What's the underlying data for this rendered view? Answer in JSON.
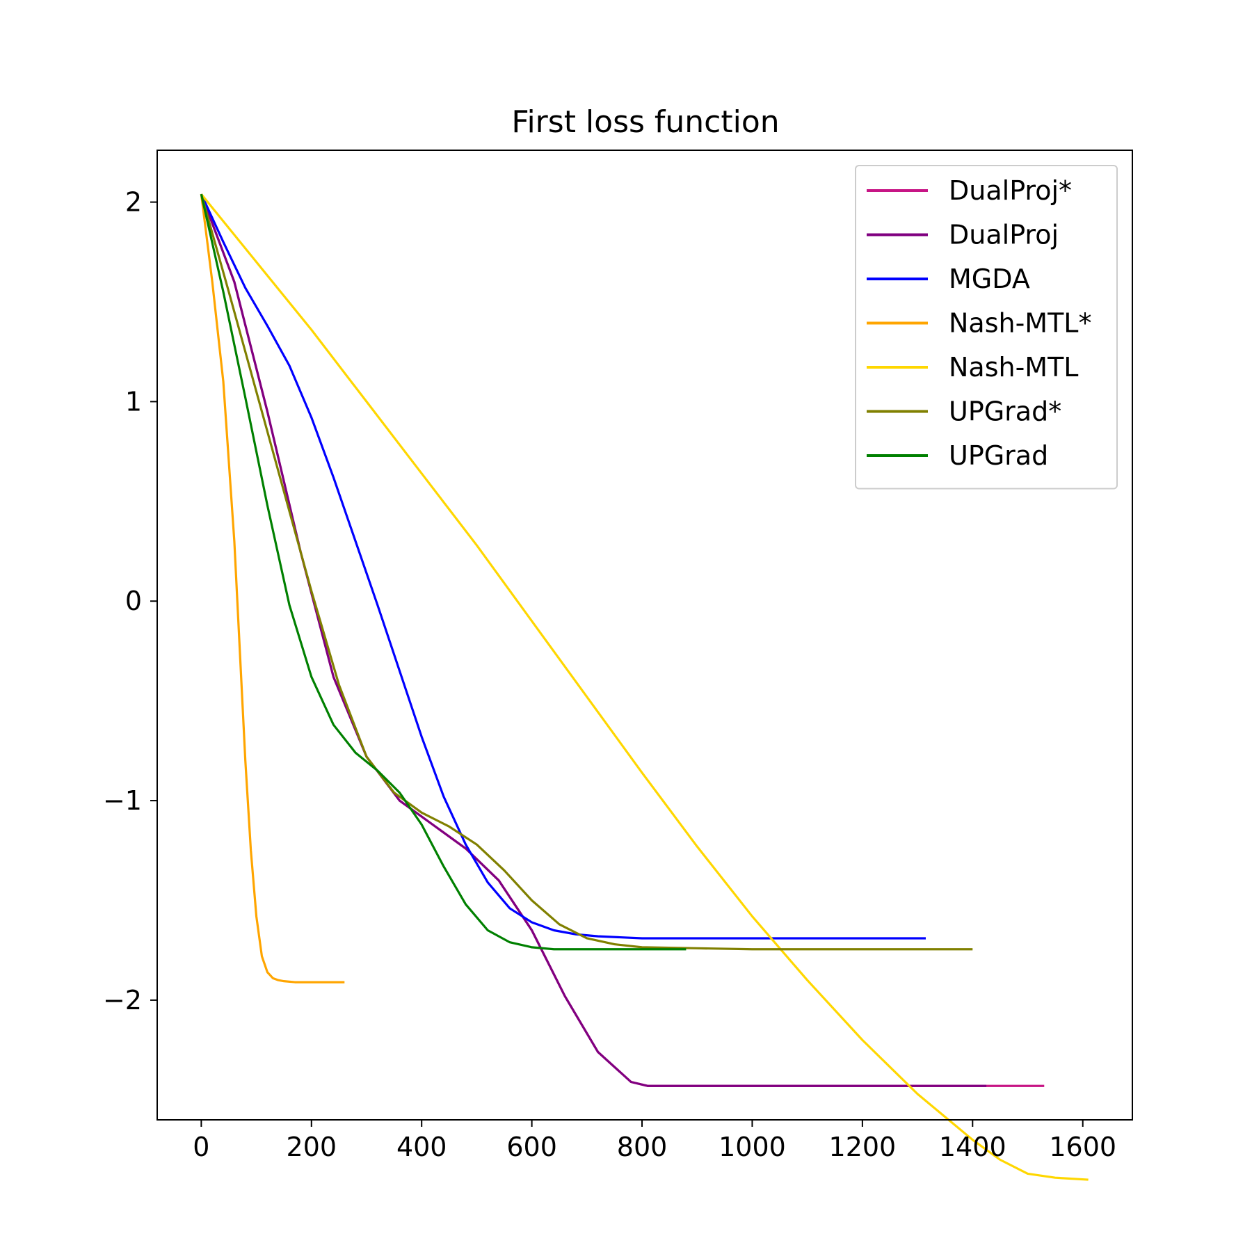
{
  "chart_data": {
    "type": "line",
    "title": "First loss function",
    "xlabel": "",
    "ylabel": "",
    "xlim": [
      -80,
      1690
    ],
    "ylim": [
      -2.6,
      2.26
    ],
    "xticks": [
      0,
      200,
      400,
      600,
      800,
      1000,
      1200,
      1400,
      1600
    ],
    "xtick_labels": [
      "0",
      "200",
      "400",
      "600",
      "800",
      "1000",
      "1200",
      "1400",
      "1600"
    ],
    "yticks": [
      2,
      1,
      0,
      -1,
      -2
    ],
    "ytick_labels": [
      "2",
      "1",
      "0",
      "−1",
      "−2"
    ],
    "grid": false,
    "legend_position": "top-right",
    "series": [
      {
        "name": "DualProj*",
        "color": "#c71585",
        "x": [
          0,
          60,
          120,
          180,
          240,
          300,
          360,
          420,
          480,
          540,
          600,
          660,
          720,
          780,
          810,
          900,
          1000,
          1100,
          1200,
          1300,
          1400,
          1530
        ],
        "y": [
          2.04,
          1.6,
          0.95,
          0.25,
          -0.38,
          -0.78,
          -1.0,
          -1.12,
          -1.24,
          -1.4,
          -1.65,
          -1.98,
          -2.26,
          -2.41,
          -2.43,
          -2.43,
          -2.43,
          -2.43,
          -2.43,
          -2.43,
          -2.43,
          -2.43
        ]
      },
      {
        "name": "DualProj",
        "color": "#800080",
        "x": [
          0,
          60,
          120,
          180,
          240,
          300,
          360,
          420,
          480,
          540,
          600,
          660,
          720,
          780,
          810,
          900,
          1000,
          1100,
          1200,
          1300,
          1425
        ],
        "y": [
          2.04,
          1.6,
          0.95,
          0.25,
          -0.38,
          -0.78,
          -1.0,
          -1.12,
          -1.24,
          -1.4,
          -1.65,
          -1.98,
          -2.26,
          -2.41,
          -2.43,
          -2.43,
          -2.43,
          -2.43,
          -2.43,
          -2.43,
          -2.43
        ]
      },
      {
        "name": "MGDA",
        "color": "#0000ff",
        "x": [
          0,
          40,
          80,
          120,
          160,
          200,
          240,
          280,
          320,
          360,
          400,
          440,
          480,
          520,
          560,
          600,
          640,
          680,
          720,
          760,
          800,
          900,
          1000,
          1100,
          1200,
          1315
        ],
        "y": [
          2.04,
          1.8,
          1.57,
          1.38,
          1.18,
          0.92,
          0.62,
          0.3,
          -0.02,
          -0.35,
          -0.68,
          -0.98,
          -1.22,
          -1.41,
          -1.54,
          -1.61,
          -1.65,
          -1.67,
          -1.68,
          -1.685,
          -1.69,
          -1.69,
          -1.69,
          -1.69,
          -1.69,
          -1.69
        ]
      },
      {
        "name": "Nash-MTL*",
        "color": "#ffa500",
        "x": [
          0,
          20,
          40,
          60,
          80,
          90,
          100,
          110,
          120,
          130,
          140,
          150,
          170,
          200,
          260
        ],
        "y": [
          2.04,
          1.6,
          1.1,
          0.3,
          -0.8,
          -1.25,
          -1.58,
          -1.78,
          -1.86,
          -1.89,
          -1.9,
          -1.905,
          -1.91,
          -1.91,
          -1.91
        ]
      },
      {
        "name": "Nash-MTL",
        "color": "#ffd700",
        "x": [
          0,
          100,
          200,
          300,
          400,
          500,
          600,
          700,
          800,
          900,
          1000,
          1100,
          1200,
          1300,
          1400,
          1450,
          1500,
          1550,
          1610
        ],
        "y": [
          2.04,
          1.7,
          1.36,
          1.0,
          0.64,
          0.28,
          -0.1,
          -0.48,
          -0.86,
          -1.23,
          -1.58,
          -1.9,
          -2.2,
          -2.47,
          -2.7,
          -2.8,
          -2.87,
          -2.89,
          -2.9
        ]
      },
      {
        "name": "UPGrad*",
        "color": "#808000",
        "x": [
          0,
          50,
          100,
          150,
          200,
          250,
          300,
          350,
          400,
          450,
          500,
          550,
          600,
          650,
          700,
          750,
          800,
          900,
          1000,
          1100,
          1200,
          1300,
          1400
        ],
        "y": [
          2.04,
          1.55,
          1.05,
          0.55,
          0.05,
          -0.42,
          -0.78,
          -0.96,
          -1.06,
          -1.13,
          -1.22,
          -1.35,
          -1.5,
          -1.62,
          -1.69,
          -1.72,
          -1.735,
          -1.74,
          -1.745,
          -1.745,
          -1.745,
          -1.745,
          -1.745
        ]
      },
      {
        "name": "UPGrad",
        "color": "#008000",
        "x": [
          0,
          40,
          80,
          120,
          160,
          200,
          240,
          280,
          320,
          360,
          400,
          440,
          480,
          520,
          560,
          600,
          640,
          700,
          800,
          880
        ],
        "y": [
          2.04,
          1.55,
          1.02,
          0.48,
          -0.02,
          -0.38,
          -0.62,
          -0.76,
          -0.85,
          -0.96,
          -1.12,
          -1.33,
          -1.52,
          -1.65,
          -1.71,
          -1.735,
          -1.745,
          -1.745,
          -1.745,
          -1.745
        ]
      }
    ]
  }
}
